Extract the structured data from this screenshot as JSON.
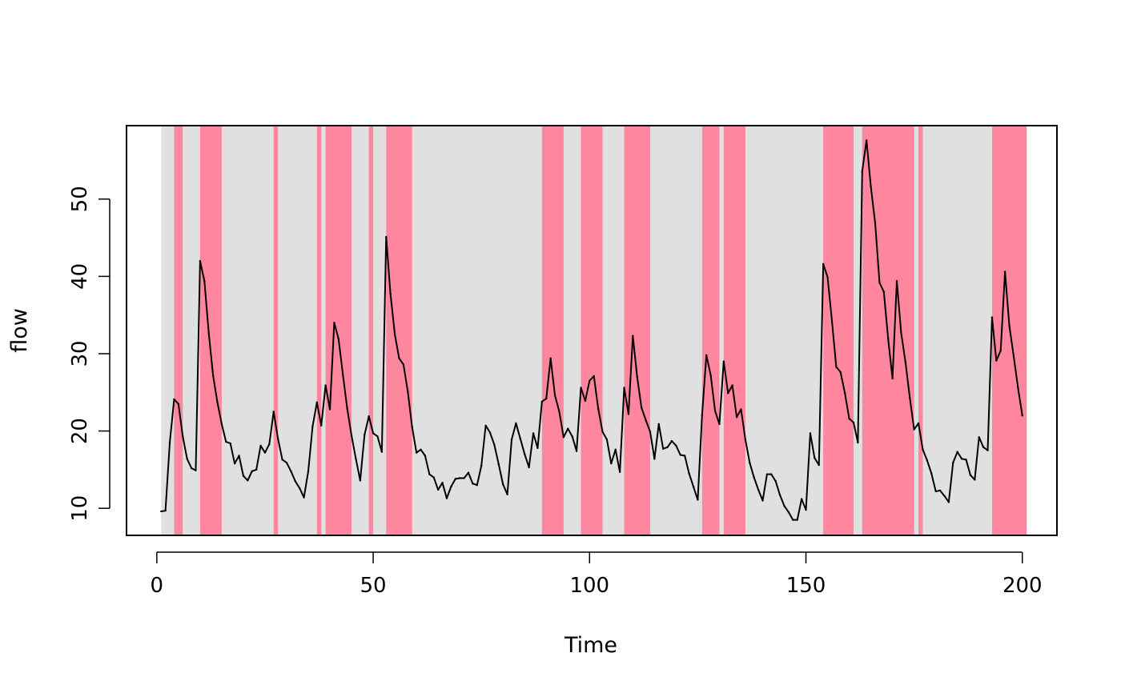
{
  "chart_data": {
    "type": "line",
    "xlabel": "Time",
    "ylabel": "flow",
    "xlim": [
      -7,
      208
    ],
    "ylim": [
      6.5,
      59.5
    ],
    "xticks": [
      0,
      50,
      100,
      150,
      200
    ],
    "yticks": [
      10,
      20,
      30,
      40,
      50
    ],
    "grid": false,
    "legend": "none",
    "colors": {
      "background_band": "#e0e0e0",
      "highlight_band": "#ff869f",
      "line": "#000000",
      "frame": "#000000"
    },
    "background_band": [
      1,
      201
    ],
    "highlight_bands": [
      [
        4,
        6
      ],
      [
        10,
        15
      ],
      [
        27,
        28
      ],
      [
        37,
        38
      ],
      [
        39,
        45
      ],
      [
        49,
        50
      ],
      [
        53,
        59
      ],
      [
        89,
        94
      ],
      [
        98,
        103
      ],
      [
        108,
        114
      ],
      [
        126,
        130
      ],
      [
        131,
        136
      ],
      [
        154,
        161
      ],
      [
        163,
        175
      ],
      [
        176,
        177
      ],
      [
        193,
        201
      ]
    ],
    "series": [
      {
        "x_start": 1,
        "values": [
          9.6,
          9.7,
          18.5,
          24.1,
          23.5,
          19.3,
          16.4,
          15.2,
          14.9,
          42.0,
          39.4,
          32.7,
          27.2,
          23.7,
          20.9,
          18.6,
          18.4,
          15.8,
          16.8,
          14.2,
          13.6,
          14.8,
          15.0,
          18.1,
          17.2,
          18.3,
          22.5,
          19.0,
          16.3,
          15.9,
          14.8,
          13.5,
          12.6,
          11.4,
          14.8,
          20.6,
          23.7,
          20.7,
          25.9,
          22.8,
          34.0,
          31.9,
          27.3,
          22.9,
          19.4,
          16.4,
          13.6,
          19.5,
          21.9,
          19.7,
          19.3,
          17.3,
          45.1,
          37.7,
          32.5,
          29.4,
          28.6,
          25.1,
          20.5,
          17.2,
          17.6,
          16.8,
          14.4,
          14.0,
          12.4,
          13.3,
          11.3,
          12.8,
          13.8,
          13.9,
          13.9,
          14.6,
          13.2,
          13.0,
          15.5,
          20.7,
          19.8,
          18.2,
          15.7,
          13.1,
          11.8,
          18.9,
          21.0,
          19.0,
          17.0,
          15.3,
          19.7,
          17.8,
          23.8,
          24.2,
          29.4,
          24.6,
          22.5,
          19.2,
          20.3,
          19.3,
          17.4,
          25.6,
          23.9,
          26.5,
          27.1,
          22.9,
          19.9,
          18.9,
          15.8,
          17.6,
          14.7,
          25.6,
          22.2,
          32.3,
          27.0,
          23.0,
          21.4,
          19.9,
          16.4,
          20.9,
          17.7,
          17.9,
          18.7,
          18.1,
          16.9,
          16.8,
          14.5,
          12.8,
          11.1,
          22.1,
          29.8,
          27.2,
          22.6,
          20.9,
          29.0,
          24.9,
          25.9,
          21.8,
          22.8,
          18.9,
          15.9,
          14.0,
          12.4,
          11.0,
          14.4,
          14.4,
          13.5,
          11.7,
          10.3,
          9.5,
          8.5,
          8.5,
          11.2,
          9.8,
          19.7,
          16.5,
          15.6,
          41.6,
          39.9,
          34.3,
          28.3,
          27.6,
          24.9,
          21.6,
          21.1,
          18.5,
          53.6,
          57.6,
          51.6,
          46.9,
          39.2,
          38.0,
          31.9,
          26.8,
          39.4,
          32.7,
          28.9,
          24.3,
          20.2,
          21.0,
          17.6,
          16.2,
          14.5,
          12.2,
          12.3,
          11.6,
          10.8,
          15.9,
          17.3,
          16.4,
          16.3,
          14.3,
          13.7,
          19.2,
          17.9,
          17.5,
          34.7,
          29.1,
          30.4,
          40.6,
          33.6,
          29.7,
          25.6,
          22.0
        ]
      }
    ]
  }
}
